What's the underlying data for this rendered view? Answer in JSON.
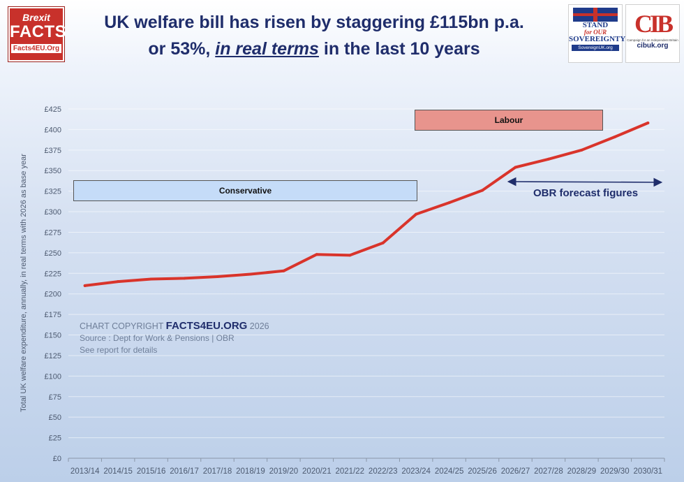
{
  "header": {
    "title_line1": "UK welfare bill has risen by staggering £115bn p.a.",
    "title_line2_pre": "or 53%, ",
    "title_line2_emph": "in real terms",
    "title_line2_post": " in the last 10 years"
  },
  "logos": {
    "brexit_facts": {
      "line1": "Brexit",
      "line2": "FACTS",
      "line3": "Facts4EU.Org",
      "color": "#c8312b"
    },
    "stand_sovereignty": {
      "line1": "STAND",
      "line2": "for OUR",
      "line3": "SOVEREIGNTY",
      "url": "SovereignUK.org"
    },
    "cib": {
      "mark": "CIB",
      "tagline": "Campaign for an Independent Britain",
      "url": "cibuk.org"
    }
  },
  "credits": {
    "prefix": "CHART COPYRIGHT ",
    "brand": "FACTS4EU.ORG",
    "year": " 2026",
    "source": "Source : Dept for Work & Pensions | OBR",
    "note": "See report for details"
  },
  "chart_data": {
    "type": "line",
    "title": "UK welfare bill has risen by staggering £115bn p.a. or 53%, in real terms in the last 10 years",
    "xlabel": "",
    "ylabel": "Total UK welfare expenditure, annually, in real terms with 2026 as base year",
    "categories": [
      "2013/14",
      "2014/15",
      "2015/16",
      "2016/17",
      "2017/18",
      "2018/19",
      "2019/20",
      "2020/21",
      "2021/22",
      "2022/23",
      "2023/24",
      "2024/25",
      "2025/26",
      "2026/27",
      "2027/28",
      "2028/29",
      "2029/30",
      "2030/31"
    ],
    "series": [
      {
        "values": [
          210,
          215,
          218,
          219,
          221,
          224,
          228,
          248,
          247,
          262,
          297,
          311,
          326,
          354,
          364,
          375,
          391,
          408
        ],
        "color": "#d9342b"
      }
    ],
    "ylim": [
      0,
      425
    ],
    "ytick_step": 25,
    "ytick_prefix": "£",
    "grid": true,
    "annotations": [
      {
        "label": "Conservative",
        "color": "#c5dcf8"
      },
      {
        "label": "Labour",
        "color": "#e8948d"
      },
      {
        "label": "OBR forecast figures",
        "color": "#1f2d6b"
      }
    ]
  }
}
